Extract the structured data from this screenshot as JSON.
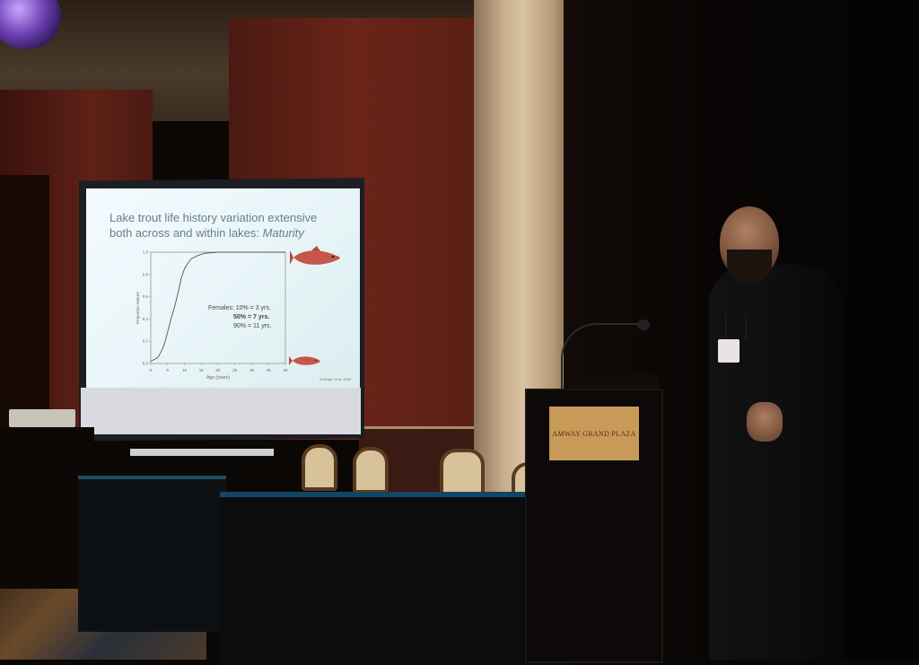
{
  "slide": {
    "title": "Lake trout life history variation extensive both across and within lakes:",
    "title_emphasis": "Maturity",
    "females_label": "Females: 10% = 3 yrs.",
    "females_50": "50% = 7 yrs.",
    "females_90": "90% = 11 yrs.",
    "citation": "Sellinger et al. 2006"
  },
  "chart_data": {
    "type": "line",
    "xlabel": "Age (years)",
    "ylabel": "Proportion Mature",
    "xlim": [
      0,
      40
    ],
    "ylim": [
      0,
      1
    ],
    "x_ticks": [
      "0",
      "5",
      "10",
      "15",
      "20",
      "25",
      "30",
      "35",
      "40"
    ],
    "y_ticks": [
      "0.0",
      "0.2",
      "0.4",
      "0.6",
      "0.8",
      "1.0"
    ],
    "series": [
      {
        "x": [
          0,
          2,
          3,
          4,
          5,
          6,
          7,
          8,
          9,
          10,
          11,
          12,
          14,
          16,
          20,
          30,
          40
        ],
        "values": [
          0.02,
          0.05,
          0.1,
          0.17,
          0.28,
          0.4,
          0.5,
          0.62,
          0.76,
          0.85,
          0.9,
          0.94,
          0.97,
          0.99,
          1.0,
          1.0,
          1.0
        ]
      }
    ]
  },
  "podium": {
    "sign": "AMWAY GRAND PLAZA"
  },
  "colors": {
    "wall": "#5e2117",
    "screen": "#eaf6f9",
    "table_cloth": "#134564",
    "podium_sign": "#c79a58",
    "fish": "#c5564a"
  }
}
